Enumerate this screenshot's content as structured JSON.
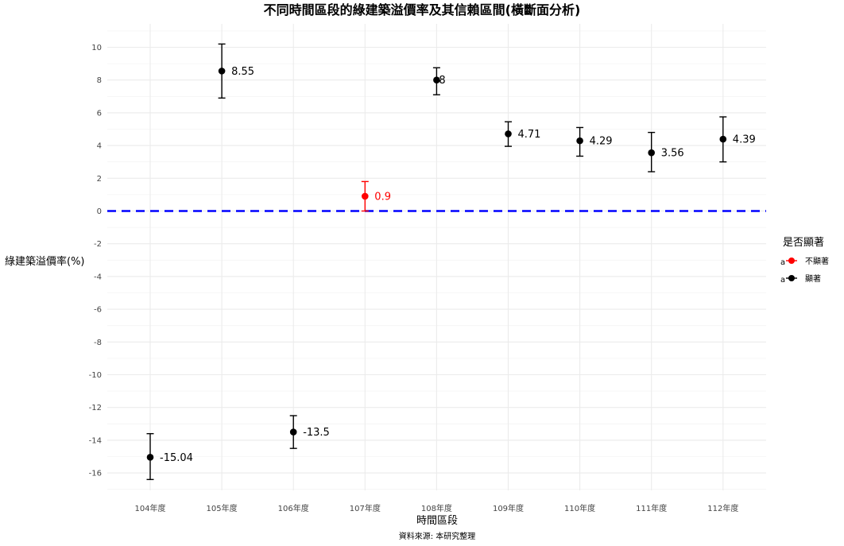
{
  "chart_data": {
    "type": "scatter",
    "title": "不同時間區段的綠建築溢價率及其信賴區間(橫斷面分析)",
    "xlabel": "時間區段",
    "ylabel": "綠建築溢價率(%)",
    "caption": "資料來源: 本研究整理",
    "categories": [
      "104年度",
      "105年度",
      "106年度",
      "107年度",
      "108年度",
      "109年度",
      "110年度",
      "111年度",
      "112年度"
    ],
    "values": [
      -15.04,
      8.55,
      -13.5,
      0.9,
      8,
      4.71,
      4.29,
      3.56,
      4.39
    ],
    "value_labels": [
      "-15.04",
      "8.55",
      "-13.5",
      "0.9",
      "8",
      "4.71",
      "4.29",
      "3.56",
      "4.39"
    ],
    "ci_lower": [
      -16.4,
      6.9,
      -14.5,
      0.0,
      7.1,
      3.95,
      3.35,
      2.4,
      3.0
    ],
    "ci_upper": [
      -13.6,
      10.2,
      -12.5,
      1.8,
      8.75,
      5.45,
      5.1,
      4.8,
      5.75
    ],
    "significance": [
      "顯著",
      "顯著",
      "顯著",
      "不顯著",
      "顯著",
      "顯著",
      "顯著",
      "顯著",
      "顯著"
    ],
    "ylim": [
      -17.2,
      11.3
    ],
    "yticks": [
      -16,
      -14,
      -12,
      -10,
      -8,
      -6,
      -4,
      -2,
      0,
      2,
      4,
      6,
      8,
      10
    ],
    "reference_line": {
      "y": 0,
      "color": "#0000ff",
      "style": "dashed"
    },
    "grid": true,
    "legend": {
      "title": "是否顯著",
      "position": "right",
      "glyph": "a",
      "entries": [
        {
          "label": "不顯著",
          "color": "#ff0000"
        },
        {
          "label": "顯著",
          "color": "#000000"
        }
      ]
    }
  }
}
